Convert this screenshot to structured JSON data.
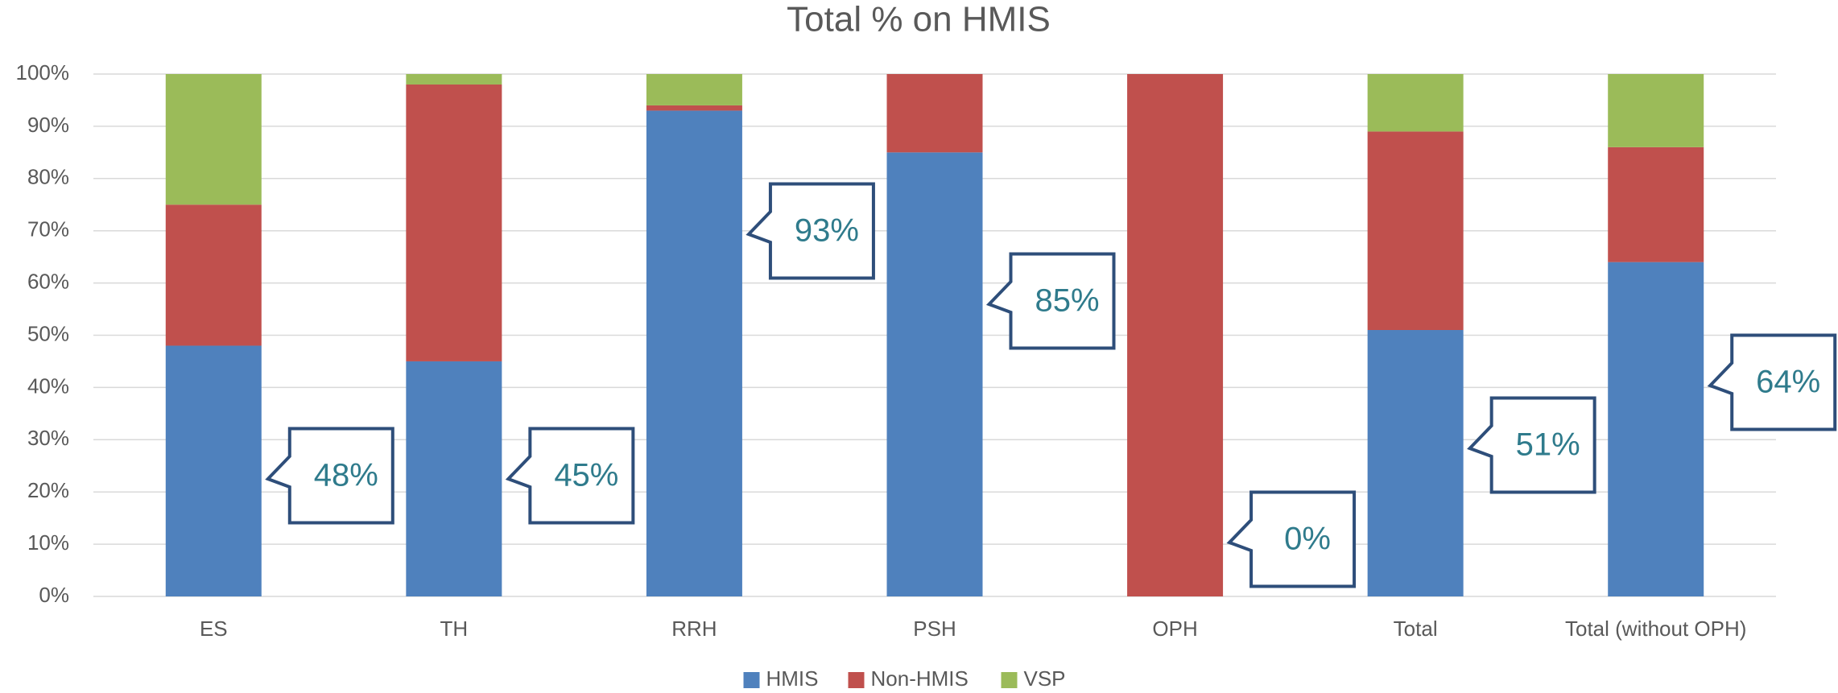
{
  "chart_data": {
    "type": "stacked_bar",
    "title": "Total % on HMIS",
    "categories": [
      "ES",
      "TH",
      "RRH",
      "PSH",
      "OPH",
      "Total",
      "Total (without OPH)"
    ],
    "series": [
      {
        "name": "HMIS",
        "color": "#4f81bd",
        "values": [
          48,
          45,
          93,
          85,
          0,
          51,
          64
        ],
        "value_labels": [
          "48%",
          "45%",
          "93%",
          "85%",
          "0%",
          "51%",
          "64%"
        ]
      },
      {
        "name": "Non-HMIS",
        "color": "#c0504d",
        "values": [
          27,
          53,
          1,
          15,
          100,
          38,
          22
        ]
      },
      {
        "name": "VSP",
        "color": "#9bbb59",
        "values": [
          25,
          2,
          6,
          0,
          0,
          11,
          14
        ]
      }
    ],
    "ylim": [
      0,
      100
    ],
    "yticks": [
      {
        "value": 0,
        "label": "0%"
      },
      {
        "value": 10,
        "label": "10%"
      },
      {
        "value": 20,
        "label": "20%"
      },
      {
        "value": 30,
        "label": "30%"
      },
      {
        "value": 40,
        "label": "40%"
      },
      {
        "value": 50,
        "label": "50%"
      },
      {
        "value": 60,
        "label": "60%"
      },
      {
        "value": 70,
        "label": "70%"
      },
      {
        "value": 80,
        "label": "80%"
      },
      {
        "value": 90,
        "label": "90%"
      },
      {
        "value": 100,
        "label": "100%"
      }
    ],
    "grid": true,
    "legend": "bottom"
  }
}
